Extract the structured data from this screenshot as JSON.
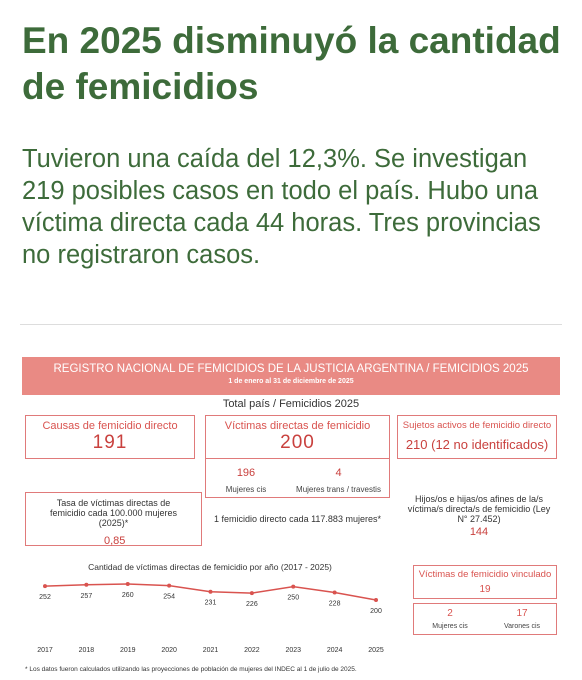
{
  "header": {
    "title": "En 2025 disminuyó la cantidad de femicidios",
    "subtitle": "Tuvieron una caída del 12,3%. Se investigan 219 posibles casos en todo el país. Hubo una víctima directa cada 44 horas. Tres provincias no registraron casos."
  },
  "infographic": {
    "banner": "REGISTRO NACIONAL DE FEMICIDIOS DE LA JUSTICIA ARGENTINA / FEMICIDIOS 2025",
    "period": "1 de enero al 31 de diciembre de 2025",
    "heading": "Total país / Femicidios 2025",
    "causes": {
      "label": "Causas de femicidio directo",
      "value": "191"
    },
    "victims": {
      "label": "Víctimas directas de femicidio",
      "value": "200",
      "cis": {
        "value": "196",
        "label": "Mujeres cis"
      },
      "trans": {
        "value": "4",
        "label": "Mujeres trans / travestis"
      }
    },
    "perpetrators": {
      "label": "Sujetos activos de femicidio directo",
      "value": "210 (12 no identificados)"
    },
    "rate": {
      "label": "Tasa de víctimas directas de femicidio cada 100.000 mujeres (2025)*",
      "value": "0,85"
    },
    "ratio": "1 femicidio directo cada 117.883 mujeres*",
    "children": {
      "label": "Hijos/os e hijas/os afines de la/s víctima/s directa/s de femicidio (Ley N° 27.452)",
      "value": "144"
    },
    "linked": {
      "label": "Víctimas de femicidio vinculado",
      "value": "19",
      "cis_women": {
        "value": "2",
        "label": "Mujeres cis"
      },
      "cis_men": {
        "value": "17",
        "label": "Varones cis"
      }
    },
    "footnote": "* Los datos fueron calculados utilizando las proyecciones de población de mujeres del INDEC al 1 de julio de 2025."
  },
  "chart_data": {
    "type": "line",
    "title": "Cantidad de víctimas directas de femicidio por año (2017 - 2025)",
    "x": [
      2017,
      2018,
      2019,
      2020,
      2021,
      2022,
      2023,
      2024,
      2025
    ],
    "series": [
      {
        "color": "#d9534f",
        "values": [
          252,
          257,
          260,
          254,
          231,
          226,
          250,
          228,
          200
        ]
      }
    ]
  }
}
